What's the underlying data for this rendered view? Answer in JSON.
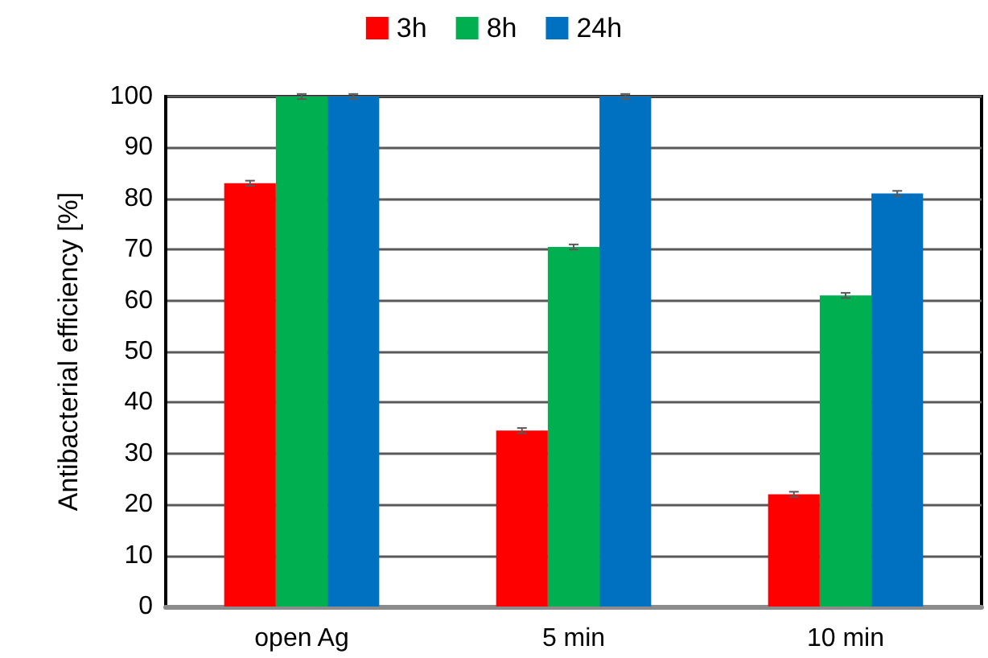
{
  "chart_data": {
    "type": "bar",
    "ylabel": "Antibacterial efficiency [%]",
    "categories": [
      "open Ag",
      "5 min",
      "10 min"
    ],
    "series": [
      {
        "name": "3h",
        "color": "#ff0000",
        "values": [
          83,
          34.5,
          22
        ],
        "errors": [
          0.5,
          0.5,
          0.5
        ]
      },
      {
        "name": "8h",
        "color": "#00b050",
        "values": [
          100,
          70.5,
          61
        ],
        "errors": [
          0.5,
          0.5,
          0.5
        ]
      },
      {
        "name": "24h",
        "color": "#0070c0",
        "values": [
          100,
          100,
          81
        ],
        "errors": [
          0.5,
          0.5,
          0.5
        ]
      }
    ],
    "ylim": [
      0,
      100
    ],
    "yticks": [
      0,
      10,
      20,
      30,
      40,
      50,
      60,
      70,
      80,
      90,
      100
    ],
    "grid": "y",
    "legend": "top"
  }
}
